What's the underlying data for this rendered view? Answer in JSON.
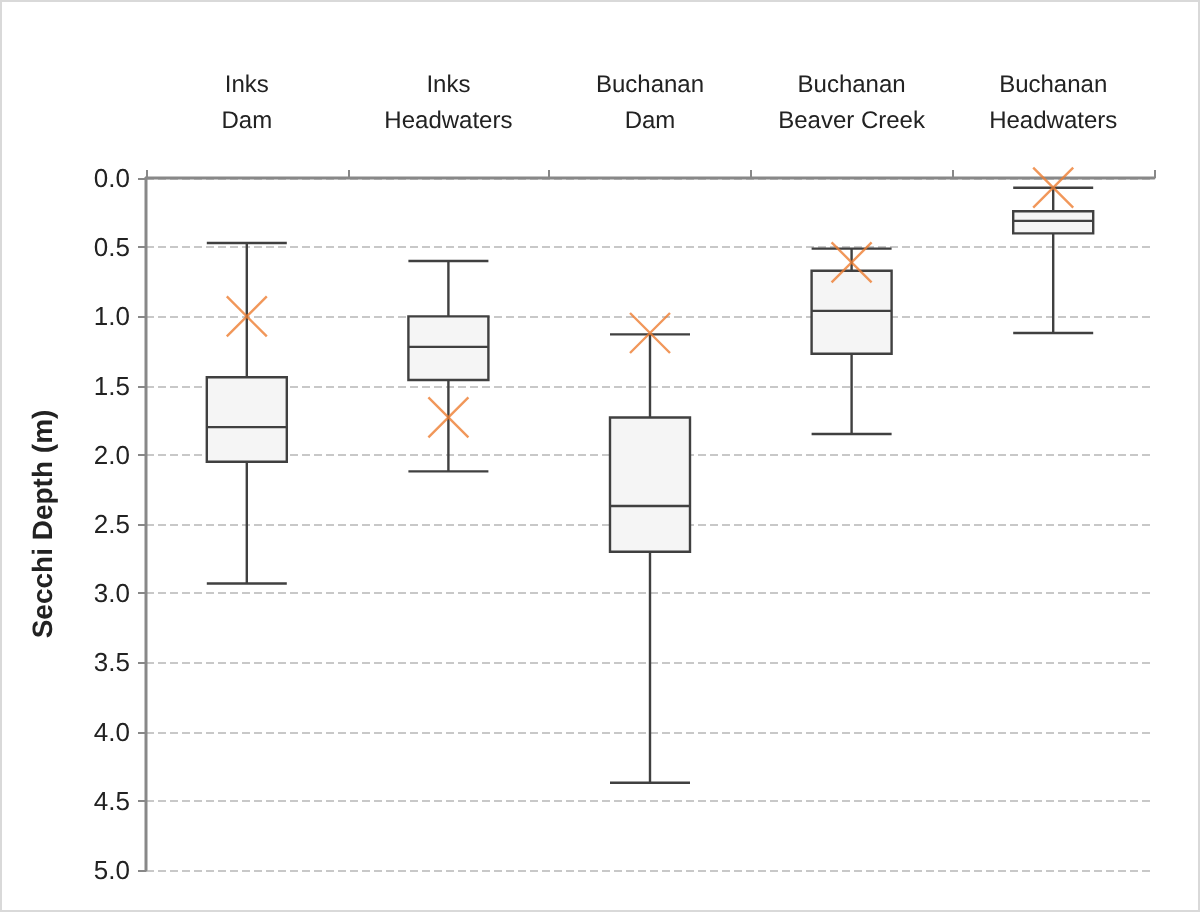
{
  "chart_data": {
    "type": "box",
    "ylabel": "Secchi Depth (m)",
    "categories": [
      "Inks Dam",
      "Inks Headwaters",
      "Buchanan Dam",
      "Buchanan Beaver Creek",
      "Buchanan Headwaters"
    ],
    "boxes": [
      {
        "low": 0.47,
        "q1": 1.44,
        "median": 1.8,
        "q3": 2.05,
        "high": 2.93
      },
      {
        "low": 0.6,
        "q1": 1.0,
        "median": 1.22,
        "q3": 1.46,
        "high": 2.12
      },
      {
        "low": 1.13,
        "q1": 1.73,
        "median": 2.37,
        "q3": 2.7,
        "high": 4.37
      },
      {
        "low": 0.51,
        "q1": 0.67,
        "median": 0.96,
        "q3": 1.27,
        "high": 1.85
      },
      {
        "low": 0.07,
        "q1": 0.24,
        "median": 0.31,
        "q3": 0.4,
        "high": 1.12
      }
    ],
    "series": [
      {
        "type": "scatter",
        "color": "#ed7d31",
        "marker": "cross",
        "x": [
          "Inks Dam",
          "Inks Headwaters",
          "Buchanan Dam",
          "Buchanan Beaver Creek",
          "Buchanan Headwaters"
        ],
        "values": [
          1.0,
          1.73,
          1.12,
          0.61,
          0.07
        ]
      }
    ],
    "ylim": [
      5,
      0
    ],
    "yticks": [
      {
        "value": 0,
        "label": "0.0"
      },
      {
        "value": 0.5,
        "label": "0.5"
      },
      {
        "value": 1,
        "label": "1.0"
      },
      {
        "value": 1.5,
        "label": "1.5"
      },
      {
        "value": 2,
        "label": "2.0"
      },
      {
        "value": 2.5,
        "label": "2.5"
      },
      {
        "value": 3,
        "label": "3.0"
      },
      {
        "value": 3.5,
        "label": "3.5"
      },
      {
        "value": 4,
        "label": "4.0"
      },
      {
        "value": 4.5,
        "label": "4.5"
      },
      {
        "value": 5,
        "label": "5.0"
      }
    ],
    "grid": "y"
  }
}
